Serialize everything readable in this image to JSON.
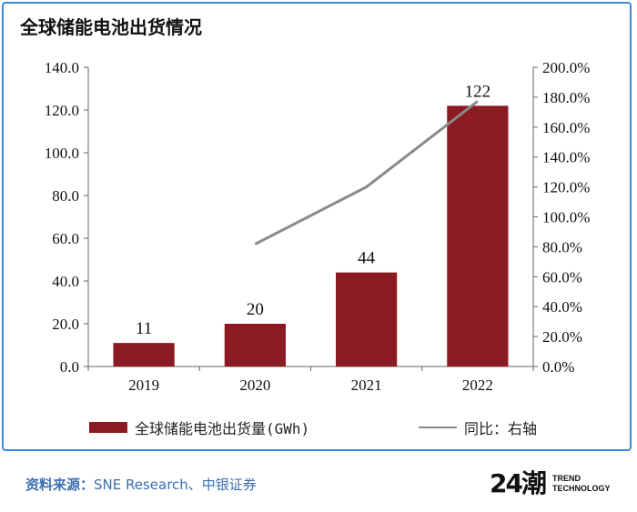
{
  "chart_data": {
    "type": "bar",
    "title": "全球储能电池出货情况",
    "categories": [
      "2019",
      "2020",
      "2021",
      "2022"
    ],
    "series": [
      {
        "name": "全球储能电池出货量(GWh)",
        "type": "bar",
        "axis": "left",
        "color": "#8b1a22",
        "values": [
          11,
          20,
          44,
          122
        ],
        "labels": [
          "11",
          "20",
          "44",
          "122"
        ]
      },
      {
        "name": "同比：右轴",
        "type": "line",
        "axis": "right",
        "color": "#8a8a8a",
        "values": [
          null,
          81.8,
          120.0,
          177.3
        ]
      }
    ],
    "y_left": {
      "range": [
        0,
        140
      ],
      "ticks": [
        "0.0",
        "20.0",
        "40.0",
        "60.0",
        "80.0",
        "100.0",
        "120.0",
        "140.0"
      ]
    },
    "y_right": {
      "range": [
        0,
        200
      ],
      "ticks": [
        "0.0%",
        "20.0%",
        "40.0%",
        "60.0%",
        "80.0%",
        "100.0%",
        "120.0%",
        "140.0%",
        "160.0%",
        "180.0%",
        "200.0%"
      ]
    },
    "legend": [
      "全球储能电池出货量(GWh)",
      "同比：右轴"
    ],
    "legend_position": "bottom"
  },
  "footer": {
    "label": "资料来源：",
    "text": "SNE Research、中银证券"
  },
  "logo": {
    "mark": "24潮",
    "line1": "TREND",
    "line2": "TECHNOLOGY"
  }
}
